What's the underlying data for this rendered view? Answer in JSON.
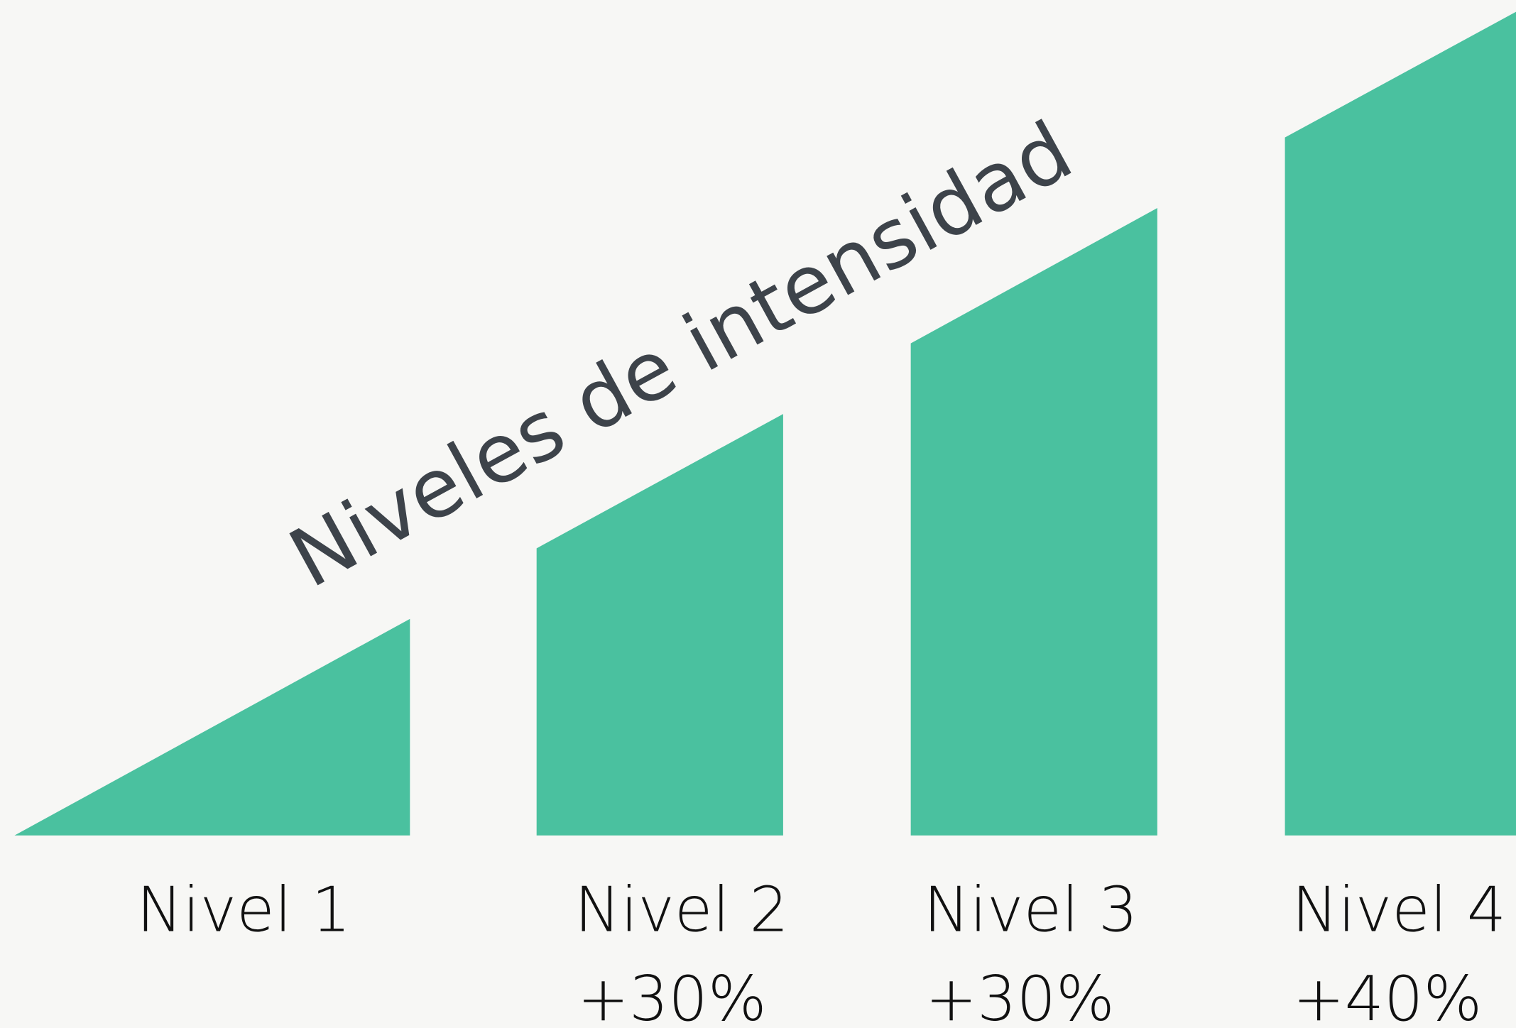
{
  "title": "Niveles de intensidad",
  "levels": [
    {
      "label": "Nivel 1"
    },
    {
      "label": "Nivel 2",
      "increase": "+30%"
    },
    {
      "label": "Nivel 3",
      "increase": "+30%"
    },
    {
      "label": "Nivel 4",
      "increase": "+40%"
    }
  ]
}
